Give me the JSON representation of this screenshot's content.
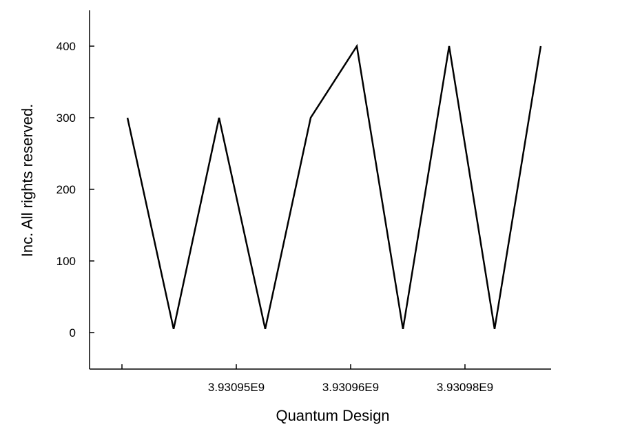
{
  "chart_data": {
    "type": "line",
    "x_label": "Quantum Design",
    "y_label": "Inc. All rights reserved.",
    "x": [
      3930933723,
      3930939777,
      3930945741,
      3930951795,
      3930957759,
      3930963813,
      3930969867,
      3930975922,
      3930981886,
      3930987940
    ],
    "series": [
      {
        "name": null,
        "color": "#000000",
        "values": [
          300,
          5,
          300,
          5,
          300,
          400,
          5,
          400,
          5,
          400
        ]
      }
    ],
    "xlim": [
      3930928750,
      3930989300
    ],
    "xticks": [
      {
        "value": 3930933000,
        "label": null
      },
      {
        "value": 3930948000,
        "label": "3.93095E9"
      },
      {
        "value": 3930963000,
        "label": "3.93096E9"
      },
      {
        "value": 3930978000,
        "label": "3.93098E9"
      }
    ],
    "ylim": [
      -51,
      450
    ],
    "yticks": [
      0,
      100,
      200,
      300,
      400
    ],
    "grid": false
  }
}
